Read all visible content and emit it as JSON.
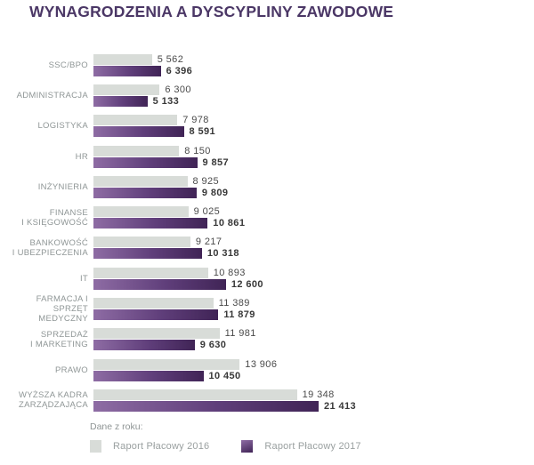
{
  "title": "WYNAGRODZENIA A DYSCYPLINY ZAWODOWE",
  "chart_data": {
    "type": "bar",
    "orientation": "horizontal",
    "title": "WYNAGRODZENIA A DYSCYPLINY ZAWODOWE",
    "xlabel": "",
    "ylabel": "",
    "xmax": 21413,
    "grid": false,
    "legend_position": "bottom",
    "categories": [
      "SSC/BPO",
      "ADMINISTRACJA",
      "LOGISTYKA",
      "HR",
      "INŻYNIERIA",
      "FINANSE\nI KSIĘGOWOŚĆ",
      "BANKOWOŚĆ\nI UBEZPIECZENIA",
      "IT",
      "FARMACJA I SPRZĘT\nMEDYCZNY",
      "SPRZEDAŻ\nI MARKETING",
      "PRAWO",
      "WYŻSZA KADRA\nZARZĄDZAJĄCA"
    ],
    "series": [
      {
        "name": "Raport Płacowy 2016",
        "color": "#d8dcd8",
        "values": [
          5562,
          6300,
          7978,
          8150,
          8925,
          9025,
          9217,
          10893,
          11389,
          11981,
          13906,
          19348
        ]
      },
      {
        "name": "Raport Płacowy 2017",
        "gradient": [
          "#8e6ca4",
          "#5f3e7a",
          "#402456"
        ],
        "values": [
          6396,
          5133,
          8591,
          9857,
          9809,
          10861,
          10318,
          12600,
          11879,
          9630,
          10450,
          21413
        ]
      }
    ]
  },
  "legend": {
    "title": "Dane z roku:",
    "items": [
      {
        "label": "Raport Płacowy 2016"
      },
      {
        "label": "Raport Płacowy 2017"
      }
    ]
  },
  "colors": {
    "title": "#4b3766",
    "bar_2016": "#d8dcd8",
    "bar_2017_from": "#8e6ca4",
    "bar_2017_to": "#402456",
    "category_label": "#8f9696",
    "value_label": "#4a4a4a",
    "legend_text": "#9aa0a0"
  }
}
